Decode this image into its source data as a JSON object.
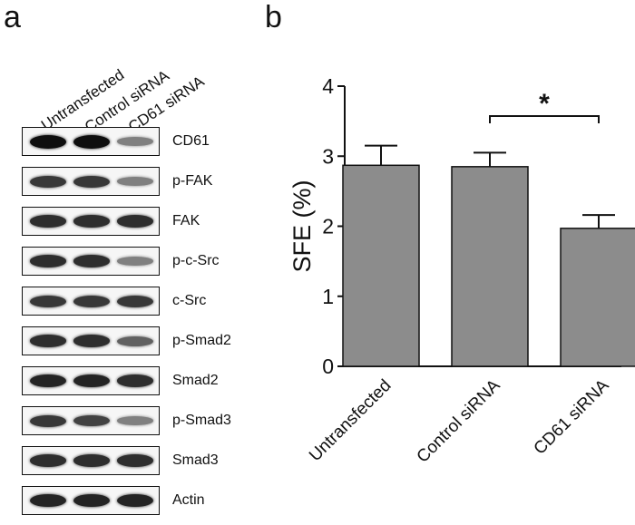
{
  "panel_a": {
    "label": "a",
    "lanes": [
      "Untransfected",
      "Control siRNA",
      "CD61 siRNA"
    ],
    "blots": [
      {
        "name": "CD61",
        "intensity": [
          1.0,
          1.0,
          0.45
        ]
      },
      {
        "name": "p-FAK",
        "intensity": [
          0.8,
          0.8,
          0.45
        ]
      },
      {
        "name": "FAK",
        "intensity": [
          0.85,
          0.85,
          0.85
        ]
      },
      {
        "name": "p-c-Src",
        "intensity": [
          0.85,
          0.85,
          0.45
        ]
      },
      {
        "name": "c-Src",
        "intensity": [
          0.8,
          0.8,
          0.8
        ]
      },
      {
        "name": "p-Smad2",
        "intensity": [
          0.85,
          0.85,
          0.6
        ]
      },
      {
        "name": "Smad2",
        "intensity": [
          0.9,
          0.9,
          0.85
        ]
      },
      {
        "name": "p-Smad3",
        "intensity": [
          0.8,
          0.75,
          0.45
        ]
      },
      {
        "name": "Smad3",
        "intensity": [
          0.85,
          0.85,
          0.85
        ]
      },
      {
        "name": "Actin",
        "intensity": [
          0.9,
          0.9,
          0.9
        ]
      }
    ]
  },
  "panel_b": {
    "label": "b"
  },
  "chart_data": {
    "type": "bar",
    "categories": [
      "Untransfected",
      "Control siRNA",
      "CD61 siRNA"
    ],
    "values": [
      2.87,
      2.85,
      1.97
    ],
    "errors": [
      0.28,
      0.2,
      0.19
    ],
    "ylabel": "SFE (%)",
    "ylim": [
      0,
      4
    ],
    "yticks": [
      "0",
      "1",
      "2",
      "3",
      "4"
    ],
    "bar_color": "#8c8c8c",
    "significance": {
      "from": "Control siRNA",
      "to": "CD61 siRNA",
      "symbol": "*"
    },
    "grid": false
  }
}
